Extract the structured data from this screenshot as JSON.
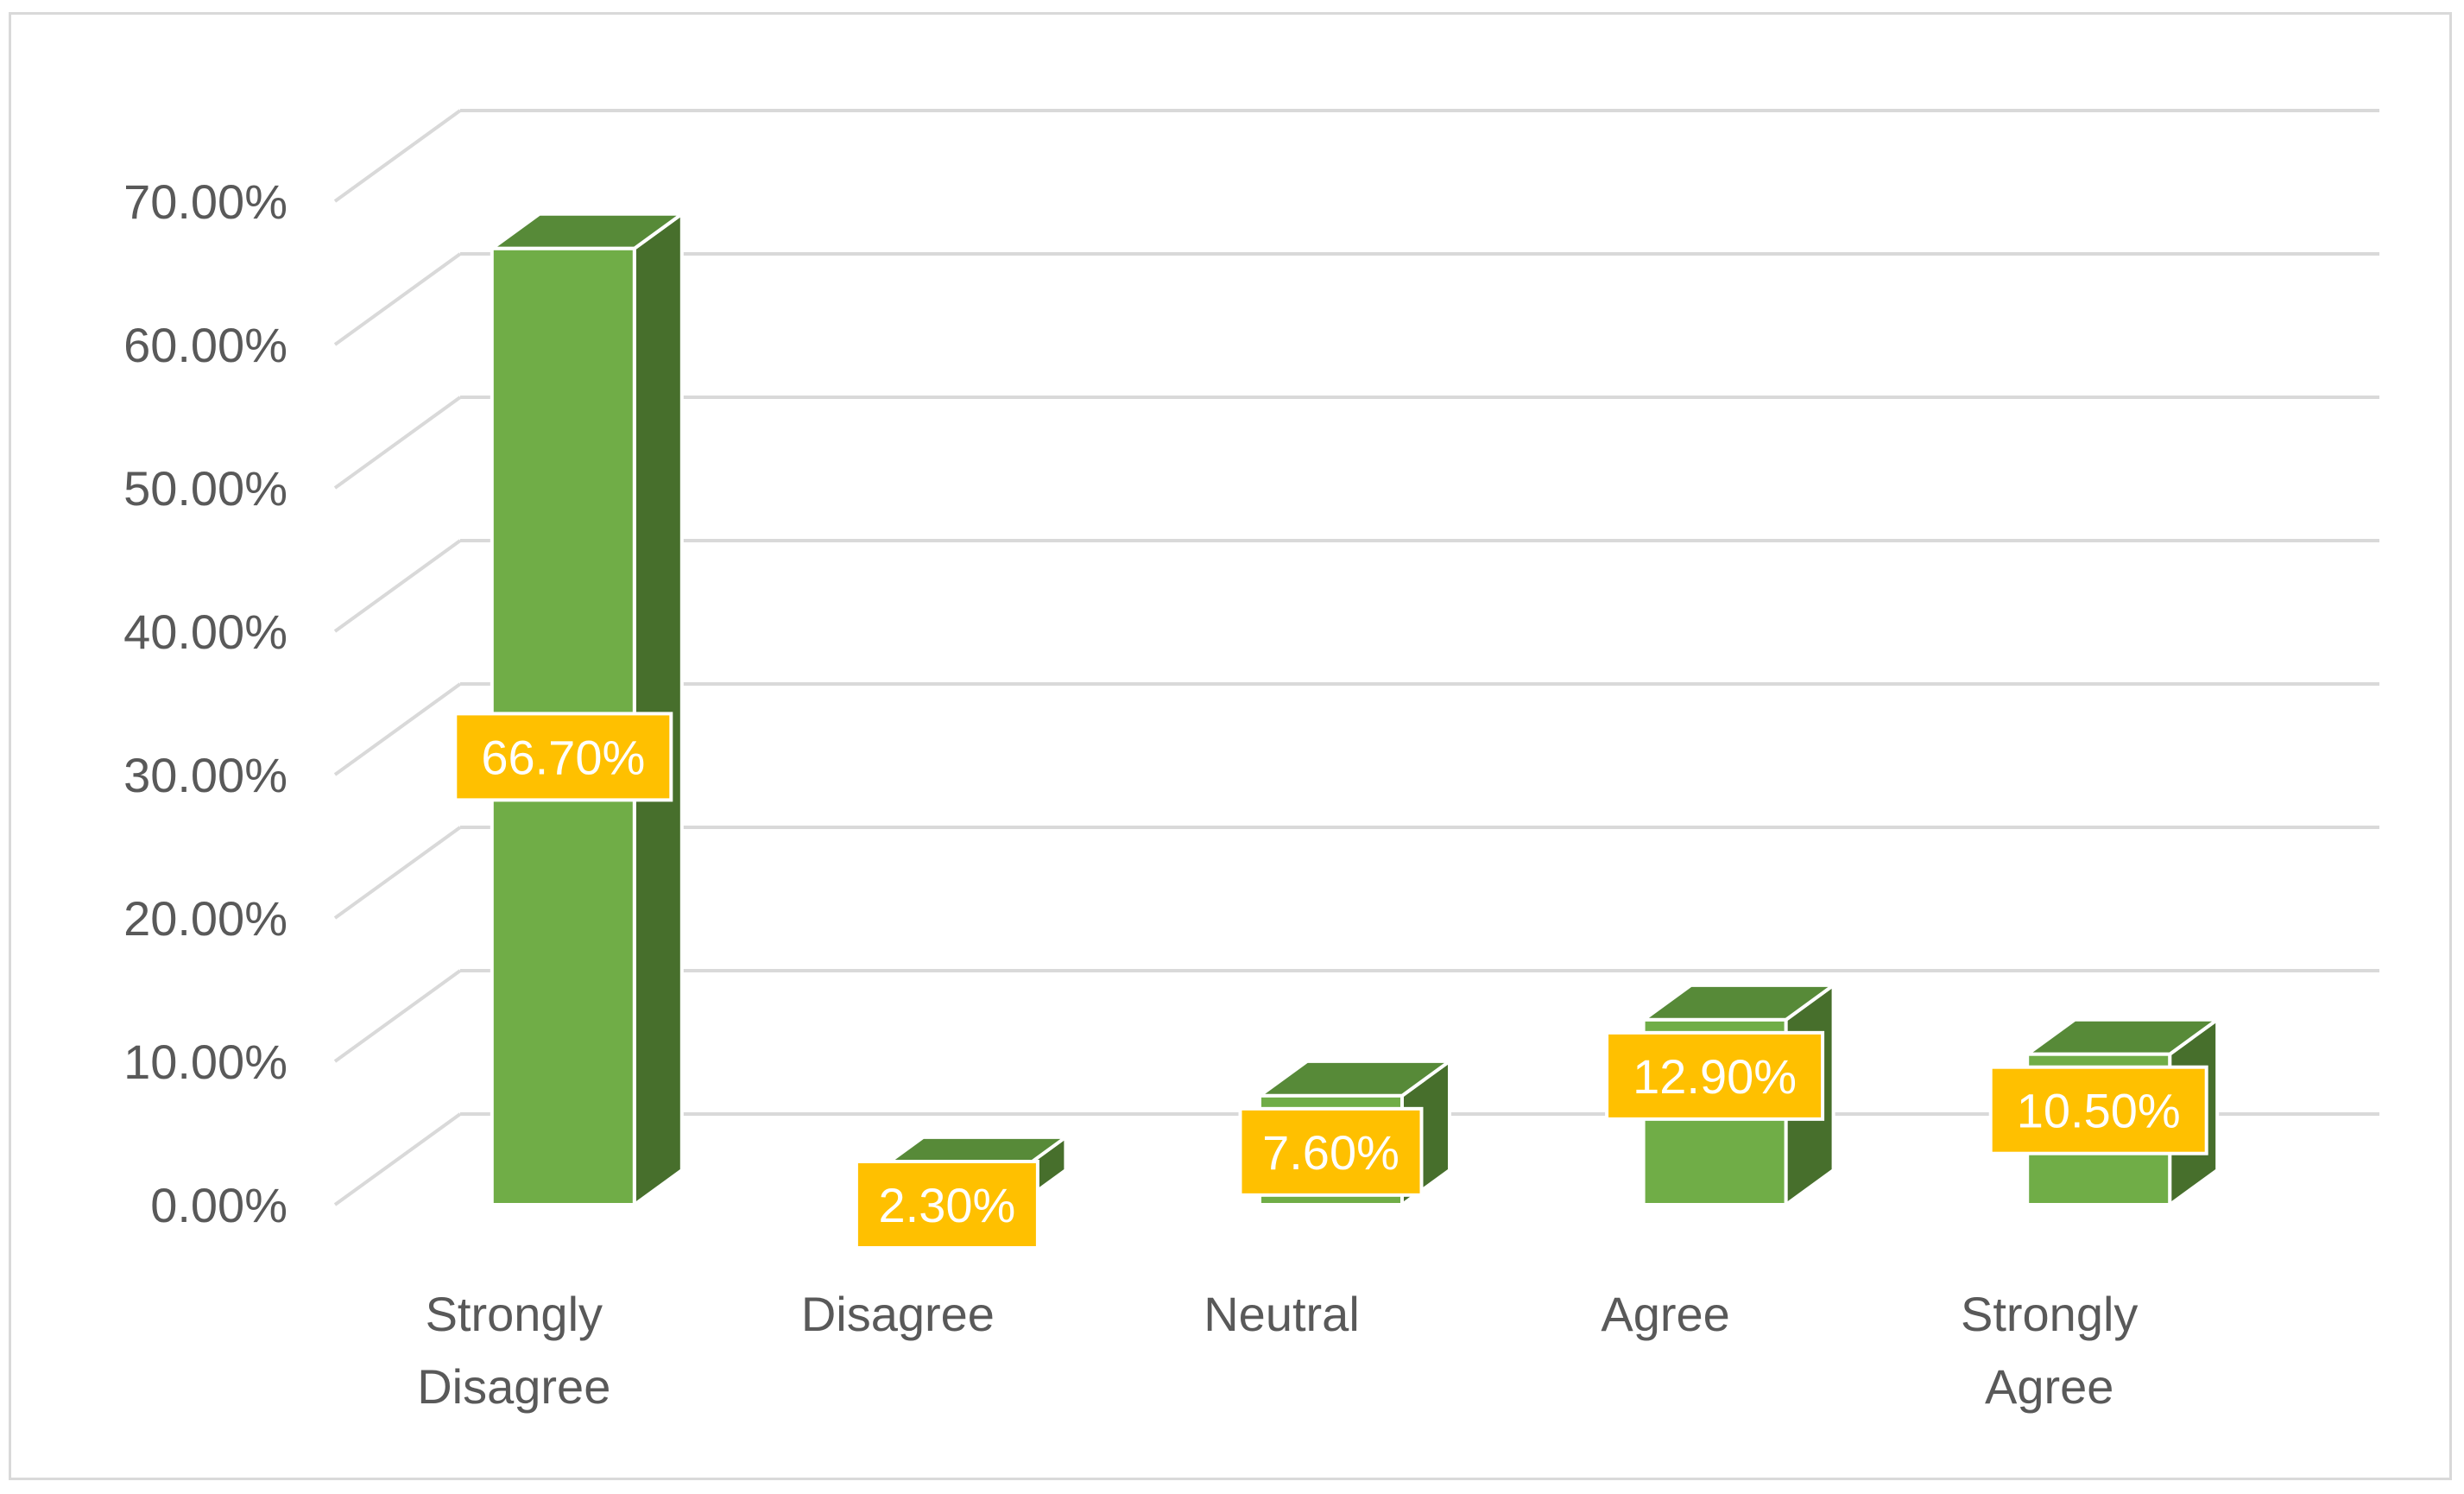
{
  "chart_data": {
    "type": "bar",
    "style": "3d-column",
    "title": "",
    "xlabel": "",
    "ylabel": "",
    "categories": [
      [
        "Strongly",
        "Disagree"
      ],
      [
        "Disagree"
      ],
      [
        "Neutral"
      ],
      [
        "Agree"
      ],
      [
        "Strongly",
        "Agree"
      ]
    ],
    "values": [
      66.7,
      2.3,
      7.6,
      12.9,
      10.5
    ],
    "data_labels": [
      "66.70%",
      "2.30%",
      "7.60%",
      "12.90%",
      "10.50%"
    ],
    "ylim": [
      0,
      70
    ],
    "yticks": [
      0,
      10,
      20,
      30,
      40,
      50,
      60,
      70
    ],
    "ytick_labels": [
      "0.00%",
      "10.00%",
      "20.00%",
      "30.00%",
      "40.00%",
      "50.00%",
      "60.00%",
      "70.00%"
    ],
    "grid": true,
    "legend": "none",
    "colors": {
      "bar_front": "#70ad47",
      "bar_side": "#476f2c",
      "bar_top": "#578a38",
      "bar_edge": "#ffffff",
      "label_bg": "#ffc000",
      "label_text": "#ffffff",
      "gridline": "#d9d9d9",
      "axis_text": "#595959"
    }
  }
}
